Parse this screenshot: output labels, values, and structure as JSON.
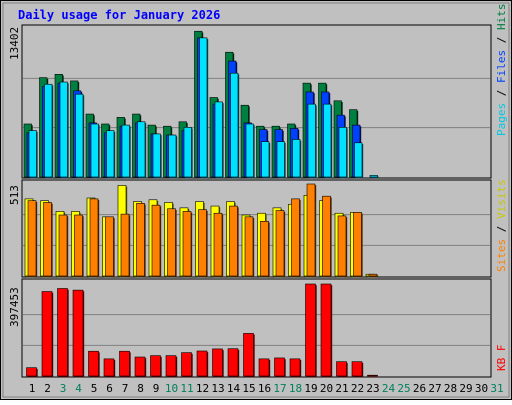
{
  "chart_data": {
    "type": "bar",
    "title": "Daily usage for January 2026",
    "categories": [
      "1",
      "2",
      "3",
      "4",
      "5",
      "6",
      "7",
      "8",
      "9",
      "10",
      "11",
      "12",
      "13",
      "14",
      "15",
      "16",
      "17",
      "18",
      "19",
      "20",
      "21",
      "22",
      "23",
      "24",
      "25",
      "26",
      "27",
      "28",
      "29",
      "30",
      "31"
    ],
    "weekend_days": [
      3,
      4,
      10,
      11,
      17,
      18,
      24,
      25,
      31
    ],
    "hits_files_pages": {
      "ymax": 13402,
      "ymax_label": "13402",
      "legend": [
        "Pages",
        "Files",
        "Hits"
      ],
      "series": [
        {
          "name": "Hits",
          "values": [
            4800,
            9000,
            9300,
            8700,
            5700,
            4800,
            5400,
            5700,
            4700,
            4600,
            5000,
            13200,
            7200,
            11300,
            6500,
            4600,
            4600,
            4800,
            8500,
            8500,
            6900,
            6100,
            0,
            0,
            0,
            0,
            0,
            0,
            0,
            0,
            0
          ]
        },
        {
          "name": "Files",
          "values": [
            4000,
            8200,
            8500,
            7800,
            4900,
            4000,
            4600,
            4900,
            3900,
            3800,
            4200,
            12600,
            6600,
            10500,
            4900,
            4300,
            4300,
            4400,
            7700,
            7700,
            5600,
            4700,
            0,
            0,
            0,
            0,
            0,
            0,
            0,
            0,
            0
          ]
        },
        {
          "name": "Pages",
          "values": [
            4200,
            8400,
            8600,
            7500,
            4800,
            4200,
            4700,
            5000,
            3900,
            3800,
            4500,
            12600,
            6800,
            9400,
            4800,
            3200,
            3200,
            3400,
            6600,
            6600,
            4500,
            3100,
            150,
            0,
            0,
            0,
            0,
            0,
            0,
            0,
            0
          ]
        }
      ]
    },
    "visits_sites": {
      "ymax": 513,
      "ymax_label": "513",
      "legend": [
        "Sites",
        "Visits"
      ],
      "series": [
        {
          "name": "Visits",
          "values": [
            430,
            420,
            360,
            360,
            435,
            330,
            505,
            415,
            425,
            410,
            380,
            415,
            390,
            415,
            340,
            350,
            380,
            400,
            450,
            420,
            350,
            355,
            10,
            0,
            0,
            0,
            0,
            0,
            0,
            0,
            0
          ]
        },
        {
          "name": "Sites",
          "values": [
            420,
            410,
            340,
            340,
            430,
            330,
            345,
            405,
            395,
            375,
            360,
            370,
            350,
            390,
            330,
            305,
            365,
            430,
            513,
            445,
            335,
            355,
            10,
            0,
            0,
            0,
            0,
            0,
            0,
            0,
            0
          ]
        }
      ]
    },
    "kbytes": {
      "ymax": 397453,
      "ymax_label": "397453",
      "legend": [
        "KB F"
      ],
      "series": [
        {
          "name": "KB F",
          "values": [
            36000,
            365000,
            378000,
            371000,
            107000,
            74000,
            107000,
            82000,
            88000,
            88000,
            101000,
            108000,
            117000,
            118000,
            184000,
            74000,
            78000,
            74000,
            397453,
            397453,
            62000,
            62000,
            3500,
            0,
            0,
            0,
            0,
            0,
            0,
            0,
            0
          ]
        }
      ]
    },
    "colors": {
      "hits": "#008040",
      "files": "#0040ff",
      "pages": "#00e0ff",
      "visits": "#ffff00",
      "sites": "#ff8000",
      "kbytes": "#ff0000",
      "title": "#0000ff",
      "weekday_label": "#000000",
      "weekend_label": "#00805c",
      "panel_bg": "#c0c0c0"
    }
  }
}
